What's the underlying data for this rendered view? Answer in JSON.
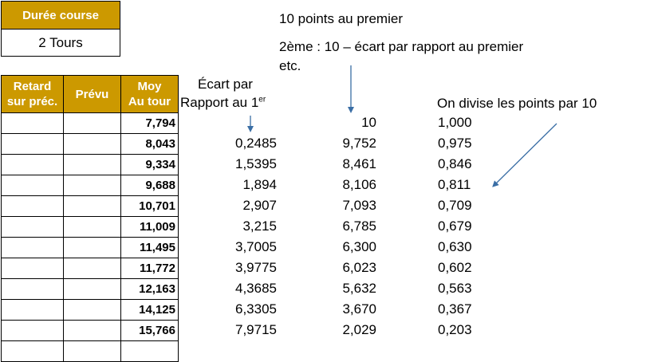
{
  "race": {
    "duration_label": "Durée course",
    "duration_value": "2 Tours"
  },
  "notes": {
    "line1": "10 points au premier",
    "line2": "2ème : 10 – écart par rapport au premier",
    "line3": "etc.",
    "divide": "On divise les points par 10"
  },
  "headers": {
    "retard_line1": "Retard",
    "retard_line2": "sur préc.",
    "prevu": "Prévu",
    "moy_line1": "Moy",
    "moy_line2": "Au tour",
    "ecart_line1": "Écart par",
    "ecart_line2": "Rapport au 1",
    "ecart_sup": "er"
  },
  "rows": [
    {
      "moy": "7,794",
      "ecart": "",
      "points": "10",
      "divided": "1,000"
    },
    {
      "moy": "8,043",
      "ecart": "0,2485",
      "points": "9,752",
      "divided": "0,975"
    },
    {
      "moy": "9,334",
      "ecart": "1,5395",
      "points": "8,461",
      "divided": "0,846"
    },
    {
      "moy": "9,688",
      "ecart": "1,894",
      "points": "8,106",
      "divided": "0,811"
    },
    {
      "moy": "10,701",
      "ecart": "2,907",
      "points": "7,093",
      "divided": "0,709"
    },
    {
      "moy": "11,009",
      "ecart": "3,215",
      "points": "6,785",
      "divided": "0,679"
    },
    {
      "moy": "11,495",
      "ecart": "3,7005",
      "points": "6,300",
      "divided": "0,630"
    },
    {
      "moy": "11,772",
      "ecart": "3,9775",
      "points": "6,023",
      "divided": "0,602"
    },
    {
      "moy": "12,163",
      "ecart": "4,3685",
      "points": "5,632",
      "divided": "0,563"
    },
    {
      "moy": "14,125",
      "ecart": "6,3305",
      "points": "3,670",
      "divided": "0,367"
    },
    {
      "moy": "15,766",
      "ecart": "7,9715",
      "points": "2,029",
      "divided": "0,203"
    }
  ],
  "colors": {
    "header_bg": "#cc9900",
    "arrow": "#3a6ea5"
  }
}
